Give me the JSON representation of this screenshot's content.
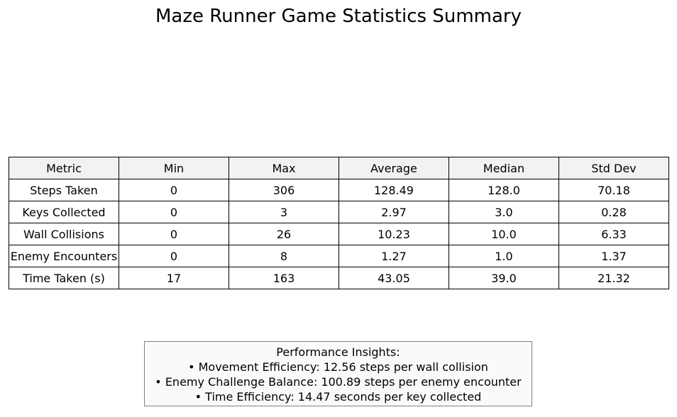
{
  "chart_data": {
    "type": "table",
    "title": "Maze Runner Game Statistics Summary",
    "columns": [
      "Metric",
      "Min",
      "Max",
      "Average",
      "Median",
      "Std Dev"
    ],
    "rows": [
      [
        "Steps Taken",
        "0",
        "306",
        "128.49",
        "128.0",
        "70.18"
      ],
      [
        "Keys Collected",
        "0",
        "3",
        "2.97",
        "3.0",
        "0.28"
      ],
      [
        "Wall Collisions",
        "0",
        "26",
        "10.23",
        "10.0",
        "6.33"
      ],
      [
        "Enemy Encounters",
        "0",
        "8",
        "1.27",
        "1.0",
        "1.37"
      ],
      [
        "Time Taken (s)",
        "17",
        "163",
        "43.05",
        "39.0",
        "21.32"
      ]
    ],
    "header_color": "#f2f2f2"
  },
  "insights": {
    "heading": "Performance Insights:",
    "lines": [
      "• Movement Efficiency: 12.56 steps per wall collision",
      "• Enemy Challenge Balance: 100.89 steps per enemy encounter",
      "• Time Efficiency: 14.47 seconds per key collected"
    ]
  }
}
